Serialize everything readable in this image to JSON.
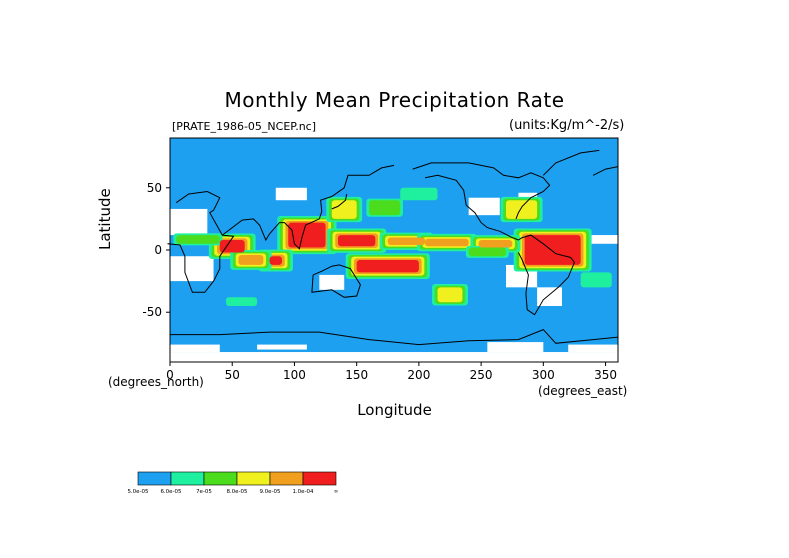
{
  "chart_data": {
    "type": "heatmap",
    "title": "Monthly Mean Precipitation Rate",
    "source_label": "[PRATE_1986-05_NCEP.nc]",
    "units": "(units:Kg/m^-2/s)",
    "ylabel": "Latitude",
    "xlabel": "Longitude",
    "x_unit_note": "(degrees_north)",
    "x_unit_note2": "(degrees_east)",
    "xlim": [
      0,
      360
    ],
    "ylim": [
      -90,
      90
    ],
    "x_ticks": [
      "0",
      "50",
      "100",
      "150",
      "200",
      "250",
      "300",
      "350"
    ],
    "y_ticks": [
      "50",
      "0",
      "-50"
    ],
    "grid": false,
    "legend_position": "bottom-left",
    "colorbar": {
      "colors": [
        "#1ea0f0",
        "#1ef0a0",
        "#4bdc1e",
        "#f0f01e",
        "#f0a01e",
        "#f01e1e"
      ],
      "labels": [
        "5.0e-05",
        "6.0e-05",
        "7e-05",
        "8.0e-05",
        "9.0e-05",
        "1.0e-04",
        "∞"
      ]
    },
    "missing_color": "#ffffff",
    "regions": [
      {
        "level": 5,
        "lon": [
          95,
          125
        ],
        "lat": [
          2,
          22
        ]
      },
      {
        "level": 5,
        "lon": [
          150,
          200
        ],
        "lat": [
          -18,
          -8
        ]
      },
      {
        "level": 5,
        "lon": [
          135,
          165
        ],
        "lat": [
          3,
          12
        ]
      },
      {
        "level": 5,
        "lon": [
          285,
          330
        ],
        "lat": [
          -12,
          12
        ]
      },
      {
        "level": 5,
        "lon": [
          40,
          60
        ],
        "lat": [
          -2,
          8
        ]
      },
      {
        "level": 5,
        "lon": [
          80,
          90
        ],
        "lat": [
          -12,
          -5
        ]
      },
      {
        "level": 4,
        "lon": [
          175,
          205
        ],
        "lat": [
          4,
          10
        ]
      },
      {
        "level": 4,
        "lon": [
          205,
          240
        ],
        "lat": [
          3,
          9
        ]
      },
      {
        "level": 4,
        "lon": [
          248,
          275
        ],
        "lat": [
          2,
          8
        ]
      },
      {
        "level": 4,
        "lon": [
          55,
          75
        ],
        "lat": [
          -12,
          -4
        ]
      },
      {
        "level": 3,
        "lon": [
          130,
          150
        ],
        "lat": [
          25,
          40
        ]
      },
      {
        "level": 3,
        "lon": [
          215,
          235
        ],
        "lat": [
          -42,
          -30
        ]
      },
      {
        "level": 3,
        "lon": [
          270,
          295
        ],
        "lat": [
          25,
          40
        ]
      },
      {
        "level": 2,
        "lon": [
          5,
          40
        ],
        "lat": [
          5,
          12
        ]
      },
      {
        "level": 2,
        "lon": [
          240,
          270
        ],
        "lat": [
          -5,
          2
        ]
      },
      {
        "level": 2,
        "lon": [
          160,
          185
        ],
        "lat": [
          28,
          40
        ]
      },
      {
        "level": 1,
        "lon": [
          185,
          215
        ],
        "lat": [
          40,
          50
        ]
      },
      {
        "level": 1,
        "lon": [
          45,
          70
        ],
        "lat": [
          -45,
          -38
        ]
      },
      {
        "level": 1,
        "lon": [
          330,
          355
        ],
        "lat": [
          -30,
          -18
        ]
      }
    ],
    "missing_regions": [
      {
        "lon": [
          0,
          30
        ],
        "lat": [
          12,
          33
        ]
      },
      {
        "lon": [
          85,
          110
        ],
        "lat": [
          40,
          50
        ]
      },
      {
        "lon": [
          0,
          35
        ],
        "lat": [
          -25,
          -5
        ]
      },
      {
        "lon": [
          120,
          140
        ],
        "lat": [
          -32,
          -20
        ]
      },
      {
        "lon": [
          240,
          265
        ],
        "lat": [
          28,
          42
        ]
      },
      {
        "lon": [
          270,
          295
        ],
        "lat": [
          -30,
          -12
        ]
      },
      {
        "lon": [
          295,
          315
        ],
        "lat": [
          -45,
          -30
        ]
      },
      {
        "lon": [
          335,
          360
        ],
        "lat": [
          5,
          12
        ]
      },
      {
        "lon": [
          0,
          360
        ],
        "lat": [
          -90,
          -82
        ]
      },
      {
        "lon": [
          0,
          40
        ],
        "lat": [
          -82,
          -76
        ]
      },
      {
        "lon": [
          70,
          110
        ],
        "lat": [
          -80,
          -76
        ]
      },
      {
        "lon": [
          255,
          300
        ],
        "lat": [
          -82,
          -74
        ]
      },
      {
        "lon": [
          320,
          360
        ],
        "lat": [
          -82,
          -76
        ]
      },
      {
        "lon": [
          280,
          295
        ],
        "lat": [
          32,
          46
        ]
      }
    ]
  }
}
